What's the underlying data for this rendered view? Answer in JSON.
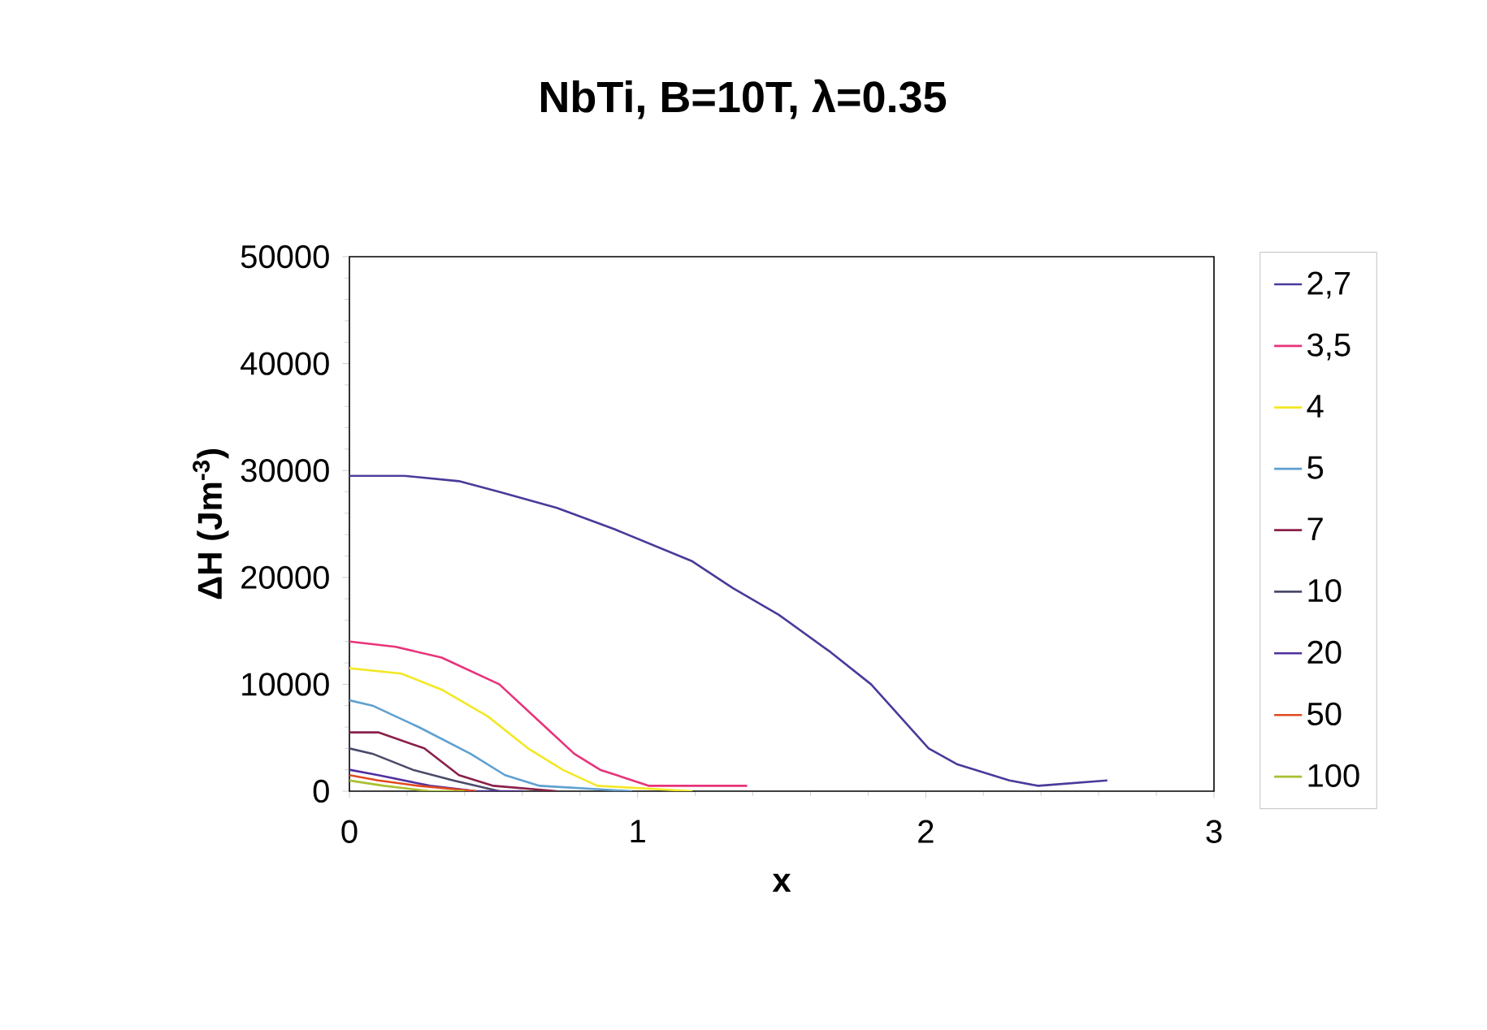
{
  "chart_data": {
    "type": "line",
    "title": "NbTi, B=10T, λ=0.35",
    "xlabel": "x",
    "ylabel": "ΔH (Jm$^{-3}$)",
    "xlim": [
      0,
      3
    ],
    "xticks": [
      0,
      1,
      2,
      3
    ],
    "ylim": [
      0,
      50000
    ],
    "yticks": [
      0,
      10000,
      20000,
      30000,
      40000,
      50000
    ],
    "grid": false,
    "legend": "right",
    "marker": "none",
    "line_style": "solid",
    "series": [
      {
        "name": "2,7",
        "color": "#4b3a9a",
        "x": [
          0,
          0.19,
          0.38,
          0.52,
          0.72,
          0.92,
          1.19,
          1.33,
          1.49,
          1.67,
          1.81,
          1.91,
          2.01,
          2.11,
          2.29,
          2.39,
          2.63
        ],
        "values": [
          29500,
          29500,
          29000,
          28000,
          26500,
          24500,
          21500,
          19000,
          16500,
          13000,
          10000,
          7000,
          4000,
          2500,
          1000,
          500,
          1000
        ]
      },
      {
        "name": "3,5",
        "color": "#e8337a",
        "x": [
          0,
          0.16,
          0.32,
          0.52,
          0.68,
          0.78,
          0.87,
          1.04,
          1.38
        ],
        "values": [
          14000,
          13500,
          12500,
          10000,
          6000,
          3500,
          2000,
          500,
          500
        ]
      },
      {
        "name": "4",
        "color": "#f2e825",
        "x": [
          0,
          0.18,
          0.32,
          0.48,
          0.62,
          0.74,
          0.86,
          1.19
        ],
        "values": [
          11500,
          11000,
          9500,
          7000,
          4000,
          2000,
          500,
          0
        ]
      },
      {
        "name": "5",
        "color": "#5fa0d0",
        "x": [
          0,
          0.08,
          0.24,
          0.42,
          0.54,
          0.66,
          0.98
        ],
        "values": [
          8500,
          8000,
          6000,
          3500,
          1500,
          500,
          0
        ]
      },
      {
        "name": "7",
        "color": "#8a1f4a",
        "x": [
          0,
          0.1,
          0.26,
          0.38,
          0.5,
          0.72
        ],
        "values": [
          5500,
          5500,
          4000,
          1500,
          500,
          0
        ]
      },
      {
        "name": "10",
        "color": "#4a4a6a",
        "x": [
          0,
          0.08,
          0.22,
          0.36,
          0.52
        ],
        "values": [
          4000,
          3500,
          2000,
          1000,
          0
        ]
      },
      {
        "name": "20",
        "color": "#5030a0",
        "x": [
          0,
          0.1,
          0.28,
          0.44,
          0.6
        ],
        "values": [
          2000,
          1500,
          500,
          0,
          0
        ]
      },
      {
        "name": "50",
        "color": "#e04a20",
        "x": [
          0,
          0.1,
          0.24,
          0.44
        ],
        "values": [
          1500,
          1000,
          500,
          0
        ]
      },
      {
        "name": "100",
        "color": "#a8c030",
        "x": [
          0,
          0.12,
          0.28,
          0.4
        ],
        "values": [
          1000,
          500,
          0,
          0
        ]
      }
    ]
  }
}
